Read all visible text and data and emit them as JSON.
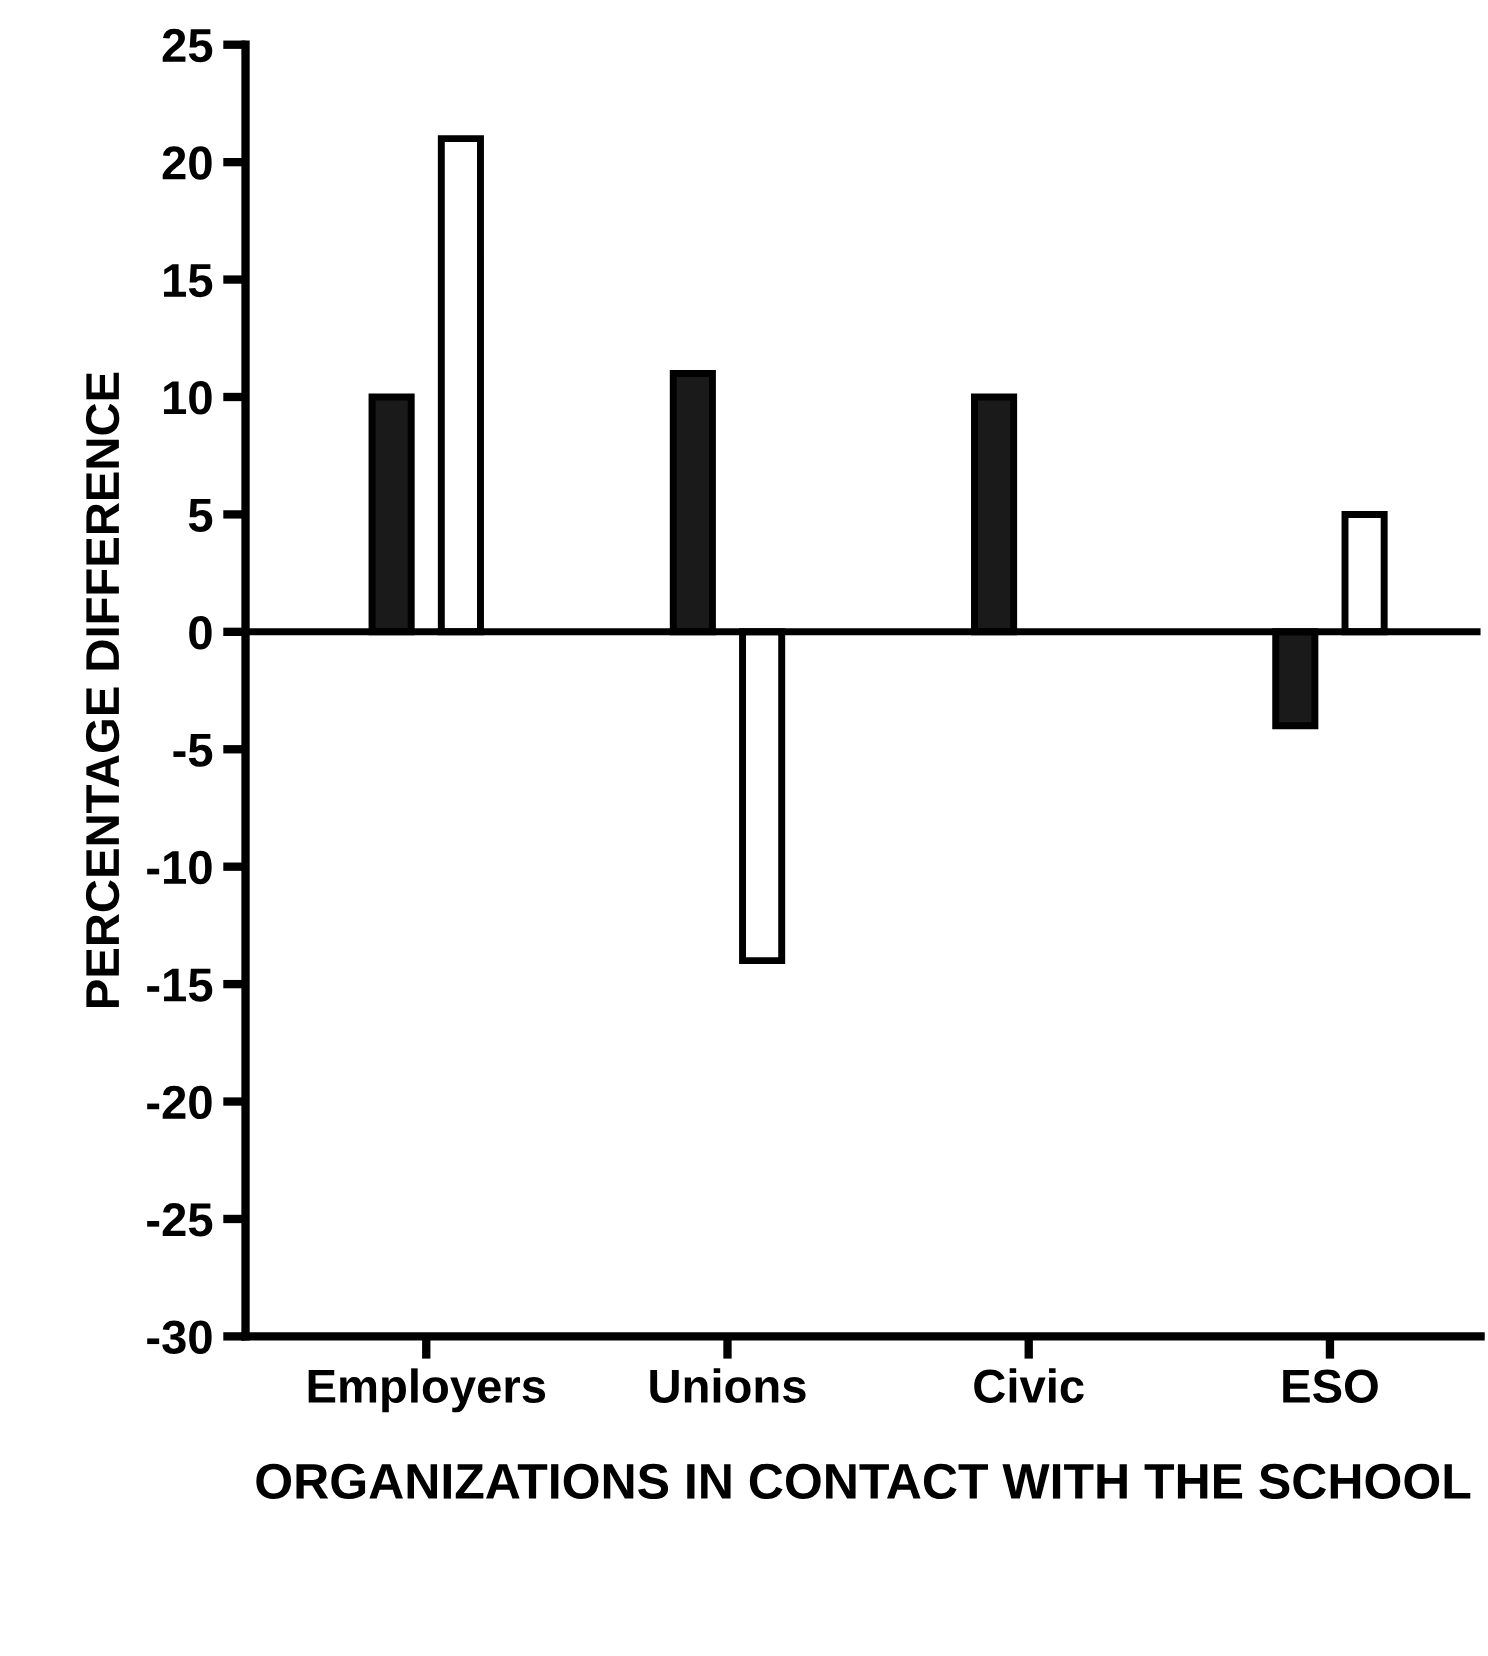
{
  "chart_data": {
    "type": "bar",
    "xlabel": "ORGANIZATIONS IN CONTACT WITH THE SCHOOL",
    "ylabel": "PERCENTAGE DIFFERENCE",
    "categories": [
      "Employers",
      "Unions",
      "Civic",
      "ESO"
    ],
    "series": [
      {
        "color": "#1a1a1a",
        "values": [
          10,
          11,
          10,
          -4
        ]
      },
      {
        "color": "#ffffff",
        "values": [
          21,
          -14,
          null,
          5
        ]
      }
    ],
    "ylim": [
      -30,
      25
    ],
    "yticks": [
      25,
      20,
      15,
      10,
      5,
      0,
      -5,
      -10,
      -15,
      -20,
      -25,
      -30
    ],
    "ref_lines": [
      {
        "axis": "y",
        "value": 0,
        "color": "#000000"
      }
    ],
    "grid": false,
    "legend": false
  }
}
